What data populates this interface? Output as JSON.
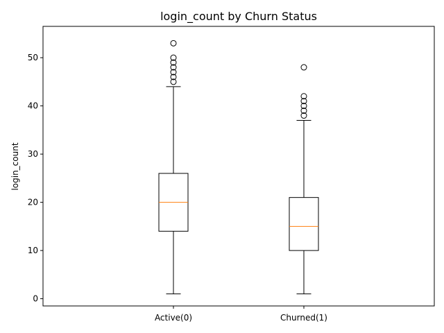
{
  "chart_data": {
    "type": "box",
    "title": "login_count by Churn Status",
    "xlabel": "",
    "ylabel": "login_count",
    "ylim": [
      -1.5,
      56.5
    ],
    "yticks": [
      0,
      10,
      20,
      30,
      40,
      50
    ],
    "grid": false,
    "categories": [
      "Active(0)",
      "Churned(1)"
    ],
    "boxes": [
      {
        "category": "Active(0)",
        "whisker_low": 1,
        "q1": 14,
        "median": 20,
        "q3": 26,
        "whisker_high": 44,
        "outliers": [
          45,
          46,
          47,
          48,
          49,
          50,
          53
        ]
      },
      {
        "category": "Churned(1)",
        "whisker_low": 1,
        "q1": 10,
        "median": 15,
        "q3": 21,
        "whisker_high": 37,
        "outliers": [
          38,
          39,
          40,
          41,
          42,
          48
        ]
      }
    ],
    "colors": {
      "box": "#000000",
      "median": "#ff7f0e",
      "outlier_edge": "#000000"
    }
  }
}
